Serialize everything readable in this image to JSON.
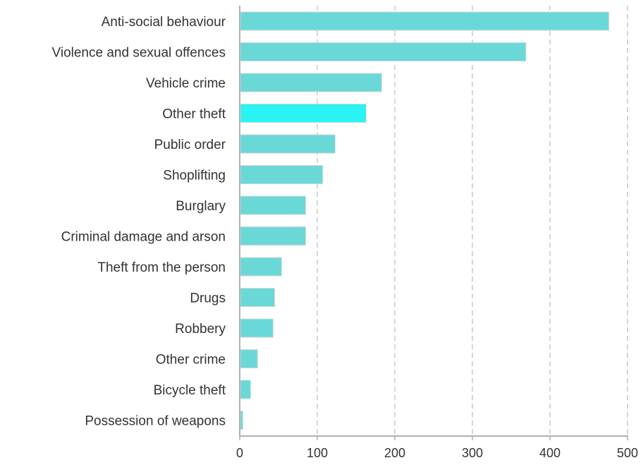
{
  "chart_data": {
    "type": "bar",
    "orientation": "horizontal",
    "categories": [
      "Anti-social behaviour",
      "Violence and sexual offences",
      "Vehicle crime",
      "Other theft",
      "Public order",
      "Shoplifting",
      "Burglary",
      "Criminal damage and arson",
      "Theft from the person",
      "Drugs",
      "Robbery",
      "Other crime",
      "Bicycle theft",
      "Possession of weapons"
    ],
    "values": [
      476,
      369,
      183,
      163,
      123,
      107,
      85,
      85,
      54,
      45,
      43,
      23,
      14,
      4
    ],
    "highlighted_category": "Other theft",
    "title": "",
    "xlabel": "",
    "ylabel": "",
    "xlim": [
      0,
      500
    ],
    "xticks": [
      0,
      100,
      200,
      300,
      400,
      500
    ],
    "grid": "vertical dashed",
    "legend": "none",
    "colors": {
      "bar": "#6bd8d8",
      "highlight": "#29f3f3",
      "grid": "#c8c8c8",
      "axis": "#b0b0b0",
      "text": "#333333"
    }
  }
}
